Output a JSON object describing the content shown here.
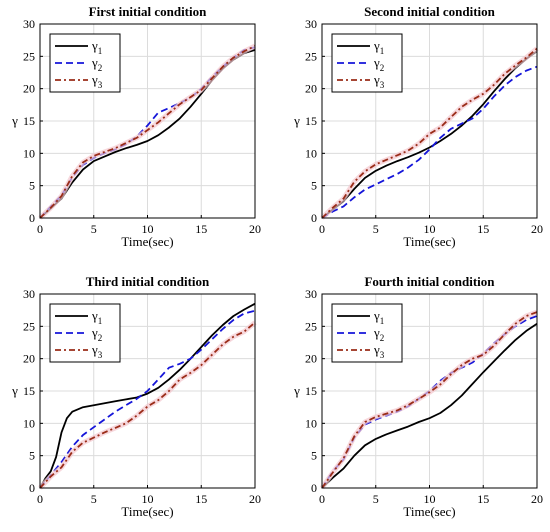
{
  "figure": {
    "type": "2x2 subplot grid"
  },
  "chart_data": [
    {
      "type": "line",
      "title": "First initial condition",
      "xlabel": "Time(sec)",
      "ylabel": "γ",
      "xlim": [
        0,
        20
      ],
      "ylim": [
        0,
        30
      ],
      "xticks": [
        "0",
        "5",
        "10",
        "15",
        "20"
      ],
      "yticks": [
        "0",
        "5",
        "10",
        "15",
        "20",
        "25",
        "30"
      ],
      "grid": true,
      "legend": "top-left",
      "series": [
        {
          "name": "γ1",
          "label_base": "γ",
          "label_sub": "1",
          "color": "#000000",
          "style": "solid",
          "x": [
            0,
            1,
            2,
            3,
            4,
            5,
            6,
            7,
            8,
            9,
            10,
            11,
            12,
            13,
            14,
            15,
            16,
            17,
            18,
            19,
            20
          ],
          "y": [
            0,
            1.5,
            3.0,
            5.5,
            7.5,
            8.8,
            9.5,
            10.2,
            10.8,
            11.3,
            11.9,
            12.8,
            14.0,
            15.4,
            17.2,
            19.2,
            21.3,
            23.1,
            24.5,
            25.5,
            26.0
          ]
        },
        {
          "name": "γ2",
          "label_base": "γ",
          "label_sub": "2",
          "color": "#1515d9",
          "style": "dashed",
          "x": [
            0,
            1,
            2,
            3,
            4,
            5,
            6,
            7,
            8,
            9,
            10,
            11,
            12,
            13,
            14,
            15,
            16,
            17,
            18,
            19,
            20
          ],
          "y": [
            0,
            1.8,
            3.5,
            6.3,
            8.2,
            9.3,
            10.0,
            10.6,
            11.4,
            12.6,
            14.3,
            16.3,
            17.0,
            17.8,
            18.6,
            20.0,
            21.8,
            23.4,
            24.8,
            26.0,
            26.4
          ]
        },
        {
          "name": "γ3",
          "label_base": "γ",
          "label_sub": "3",
          "color": "#9a2c18",
          "style": "dashdot",
          "x": [
            0,
            1,
            2,
            3,
            4,
            5,
            6,
            7,
            8,
            9,
            10,
            11,
            12,
            13,
            14,
            15,
            16,
            17,
            18,
            19,
            20
          ],
          "y": [
            0,
            1.6,
            3.4,
            6.5,
            8.6,
            9.6,
            10.2,
            10.8,
            11.6,
            12.4,
            13.6,
            14.8,
            16.2,
            17.6,
            18.7,
            19.8,
            21.6,
            23.4,
            24.8,
            25.8,
            26.6
          ]
        }
      ]
    },
    {
      "type": "line",
      "title": "Second initial condition",
      "xlabel": "Time(sec)",
      "ylabel": "γ",
      "xlim": [
        0,
        20
      ],
      "ylim": [
        0,
        30
      ],
      "xticks": [
        "0",
        "5",
        "10",
        "15",
        "20"
      ],
      "yticks": [
        "0",
        "5",
        "10",
        "15",
        "20",
        "25",
        "30"
      ],
      "grid": true,
      "legend": "top-left",
      "series": [
        {
          "name": "γ1",
          "label_base": "γ",
          "label_sub": "1",
          "color": "#000000",
          "style": "solid",
          "x": [
            0,
            1,
            2,
            3,
            4,
            5,
            6,
            7,
            8,
            9,
            10,
            11,
            12,
            13,
            14,
            15,
            16,
            17,
            18,
            19,
            20
          ],
          "y": [
            0,
            1.3,
            2.6,
            4.5,
            6.2,
            7.3,
            8.1,
            8.8,
            9.4,
            10.1,
            10.9,
            11.9,
            13.0,
            14.3,
            15.8,
            17.6,
            19.6,
            21.5,
            23.2,
            24.6,
            25.8
          ]
        },
        {
          "name": "γ2",
          "label_base": "γ",
          "label_sub": "2",
          "color": "#1515d9",
          "style": "dashed",
          "x": [
            0,
            1,
            2,
            3,
            4,
            5,
            6,
            7,
            8,
            9,
            10,
            11,
            12,
            13,
            14,
            15,
            16,
            17,
            18,
            19,
            20
          ],
          "y": [
            0,
            1.0,
            1.8,
            3.2,
            4.4,
            5.2,
            6.0,
            6.8,
            7.8,
            9.0,
            10.6,
            12.4,
            13.8,
            14.6,
            15.4,
            16.9,
            18.8,
            20.5,
            21.8,
            22.8,
            23.4
          ]
        },
        {
          "name": "γ3",
          "label_base": "γ",
          "label_sub": "3",
          "color": "#9a2c18",
          "style": "dashdot",
          "x": [
            0,
            1,
            2,
            3,
            4,
            5,
            6,
            7,
            8,
            9,
            10,
            11,
            12,
            13,
            14,
            15,
            16,
            17,
            18,
            19,
            20
          ],
          "y": [
            0,
            1.6,
            3.0,
            5.6,
            7.2,
            8.3,
            9.0,
            9.7,
            10.4,
            11.5,
            13.0,
            14.0,
            15.6,
            17.2,
            18.3,
            19.2,
            20.6,
            22.3,
            23.6,
            24.8,
            26.2
          ]
        }
      ]
    },
    {
      "type": "line",
      "title": "Third initial condition",
      "xlabel": "Time(sec)",
      "ylabel": "γ",
      "xlim": [
        0,
        20
      ],
      "ylim": [
        0,
        30
      ],
      "xticks": [
        "0",
        "5",
        "10",
        "15",
        "20"
      ],
      "yticks": [
        "0",
        "5",
        "10",
        "15",
        "20",
        "25",
        "30"
      ],
      "grid": true,
      "legend": "top-left",
      "series": [
        {
          "name": "γ1",
          "label_base": "γ",
          "label_sub": "1",
          "color": "#000000",
          "style": "solid",
          "x": [
            0,
            0.5,
            1,
            1.5,
            2,
            2.5,
            3,
            4,
            5,
            6,
            7,
            8,
            9,
            10,
            11,
            12,
            13,
            14,
            15,
            16,
            17,
            18,
            19,
            20
          ],
          "y": [
            0,
            1.5,
            2.6,
            4.8,
            8.6,
            10.8,
            11.8,
            12.5,
            12.8,
            13.1,
            13.4,
            13.7,
            14.0,
            14.6,
            15.5,
            16.8,
            18.3,
            20.0,
            21.8,
            23.6,
            25.2,
            26.6,
            27.6,
            28.5
          ]
        },
        {
          "name": "γ2",
          "label_base": "γ",
          "label_sub": "2",
          "color": "#1515d9",
          "style": "dashed",
          "x": [
            0,
            1,
            2,
            3,
            4,
            5,
            6,
            7,
            8,
            9,
            10,
            11,
            12,
            13,
            14,
            15,
            16,
            17,
            18,
            19,
            20
          ],
          "y": [
            0,
            2.0,
            4.0,
            6.4,
            8.2,
            9.4,
            10.6,
            11.8,
            12.8,
            13.8,
            15.0,
            16.8,
            18.6,
            19.2,
            20.0,
            21.4,
            23.0,
            24.6,
            26.0,
            27.0,
            27.4
          ]
        },
        {
          "name": "γ3",
          "label_base": "γ",
          "label_sub": "3",
          "color": "#9a2c18",
          "style": "dashdot",
          "x": [
            0,
            1,
            2,
            3,
            4,
            5,
            6,
            7,
            8,
            9,
            10,
            11,
            12,
            13,
            14,
            15,
            16,
            17,
            18,
            19,
            20
          ],
          "y": [
            0,
            1.8,
            3.2,
            5.6,
            7.0,
            7.8,
            8.6,
            9.3,
            10.0,
            11.2,
            12.6,
            13.6,
            15.0,
            16.8,
            17.8,
            19.0,
            20.6,
            22.2,
            23.4,
            24.2,
            25.6
          ]
        }
      ]
    },
    {
      "type": "line",
      "title": "Fourth initial condition",
      "xlabel": "Time(sec)",
      "ylabel": "γ",
      "xlim": [
        0,
        20
      ],
      "ylim": [
        0,
        30
      ],
      "xticks": [
        "0",
        "5",
        "10",
        "15",
        "20"
      ],
      "yticks": [
        "0",
        "5",
        "10",
        "15",
        "20",
        "25",
        "30"
      ],
      "grid": true,
      "legend": "top-left",
      "series": [
        {
          "name": "γ1",
          "label_base": "γ",
          "label_sub": "1",
          "color": "#000000",
          "style": "solid",
          "x": [
            0,
            1,
            2,
            3,
            4,
            5,
            6,
            7,
            8,
            9,
            10,
            11,
            12,
            13,
            14,
            15,
            16,
            17,
            18,
            19,
            20
          ],
          "y": [
            0,
            1.6,
            3.0,
            5.0,
            6.6,
            7.6,
            8.3,
            8.9,
            9.5,
            10.2,
            10.8,
            11.6,
            12.8,
            14.3,
            16.1,
            17.9,
            19.6,
            21.3,
            22.9,
            24.3,
            25.4
          ]
        },
        {
          "name": "γ2",
          "label_base": "γ",
          "label_sub": "2",
          "color": "#1515d9",
          "style": "dashed",
          "x": [
            0,
            1,
            2,
            3,
            4,
            5,
            6,
            7,
            8,
            9,
            10,
            11,
            12,
            13,
            14,
            15,
            16,
            17,
            18,
            19,
            20
          ],
          "y": [
            0,
            2.6,
            4.4,
            7.8,
            9.8,
            10.6,
            11.2,
            11.8,
            12.6,
            13.8,
            15.0,
            16.6,
            17.8,
            18.6,
            19.4,
            20.8,
            22.4,
            23.8,
            25.0,
            26.0,
            26.6
          ]
        },
        {
          "name": "γ3",
          "label_base": "γ",
          "label_sub": "3",
          "color": "#9a2c18",
          "style": "dashdot",
          "x": [
            0,
            1,
            2,
            3,
            4,
            5,
            6,
            7,
            8,
            9,
            10,
            11,
            12,
            13,
            14,
            15,
            16,
            17,
            18,
            19,
            20
          ],
          "y": [
            0,
            2.4,
            4.6,
            8.0,
            10.2,
            11.0,
            11.5,
            12.0,
            12.8,
            13.8,
            14.8,
            16.0,
            17.6,
            19.0,
            20.0,
            20.6,
            22.0,
            23.8,
            25.4,
            26.6,
            27.2
          ]
        }
      ]
    }
  ]
}
